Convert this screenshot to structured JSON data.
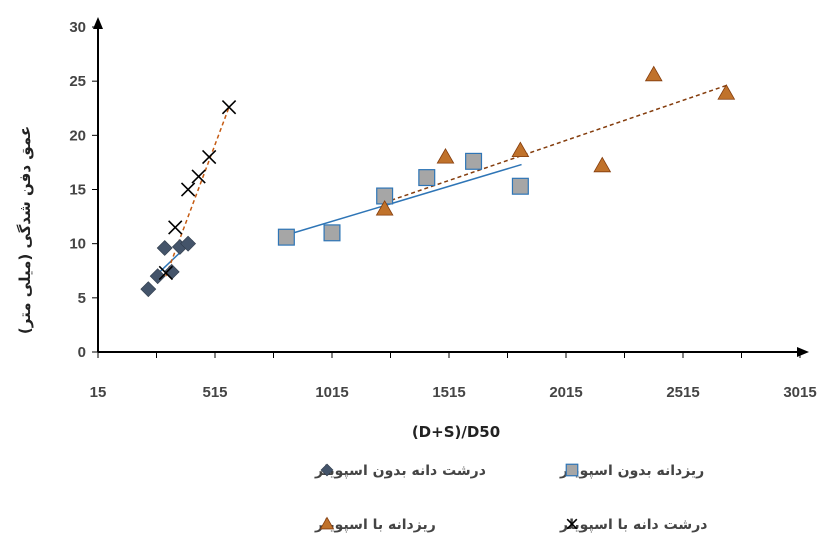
{
  "chart_data": {
    "type": "scatter",
    "xlabel": "(D+S)/D50",
    "ylabel": "عمق دفن شدگی (میلی متر)",
    "xlim": [
      15,
      3015
    ],
    "ylim": [
      0,
      30
    ],
    "x_ticks": [
      "15",
      "515",
      "1015",
      "1515",
      "2015",
      "2515",
      "3015"
    ],
    "y_ticks": [
      "0",
      "5",
      "10",
      "15",
      "20",
      "25",
      "30"
    ],
    "grid": false,
    "legend_position": "bottom",
    "series": [
      {
        "name": "درشت دانه بدون اسپویلر",
        "marker": "diamond",
        "color": "#44546a",
        "trendline": {
          "color": "#2e75b6",
          "style": "solid",
          "x": [
            250,
            420
          ],
          "y": [
            6.8,
            10.3
          ]
        },
        "points": [
          {
            "x": 230,
            "y": 5.8
          },
          {
            "x": 270,
            "y": 7.0
          },
          {
            "x": 300,
            "y": 9.6
          },
          {
            "x": 330,
            "y": 7.4
          },
          {
            "x": 365,
            "y": 9.7
          },
          {
            "x": 400,
            "y": 10.0
          }
        ]
      },
      {
        "name": "ریزدانه بدون اسپویلر",
        "marker": "square",
        "color": "#a6a6a6",
        "trendline": {
          "color": "#2e75b6",
          "style": "solid",
          "x": [
            820,
            1825
          ],
          "y": [
            10.8,
            17.3
          ]
        },
        "points": [
          {
            "x": 820,
            "y": 10.6
          },
          {
            "x": 1015,
            "y": 11.0
          },
          {
            "x": 1240,
            "y": 14.4
          },
          {
            "x": 1420,
            "y": 16.1
          },
          {
            "x": 1620,
            "y": 17.6
          },
          {
            "x": 1820,
            "y": 15.3
          }
        ]
      },
      {
        "name": "ریزدانه با اسپویلر",
        "marker": "triangle",
        "color": "#c0722b",
        "trendline": {
          "color": "#843c0c",
          "style": "dashed",
          "x": [
            1240,
            2700
          ],
          "y": [
            13.8,
            24.6
          ]
        },
        "points": [
          {
            "x": 1240,
            "y": 13.2
          },
          {
            "x": 1500,
            "y": 18.0
          },
          {
            "x": 1820,
            "y": 18.6
          },
          {
            "x": 2170,
            "y": 17.2
          },
          {
            "x": 2390,
            "y": 25.6
          },
          {
            "x": 2700,
            "y": 23.9
          }
        ]
      },
      {
        "name": "درشت دانه با اسپویلر",
        "marker": "x",
        "color": "#000000",
        "trendline": {
          "color": "#c55a11",
          "style": "dashed",
          "x": [
            305,
            575
          ],
          "y": [
            7.0,
            22.6
          ]
        },
        "points": [
          {
            "x": 305,
            "y": 7.3
          },
          {
            "x": 345,
            "y": 11.5
          },
          {
            "x": 400,
            "y": 15.0
          },
          {
            "x": 445,
            "y": 16.2
          },
          {
            "x": 490,
            "y": 18.0
          },
          {
            "x": 575,
            "y": 22.6
          }
        ]
      }
    ]
  }
}
